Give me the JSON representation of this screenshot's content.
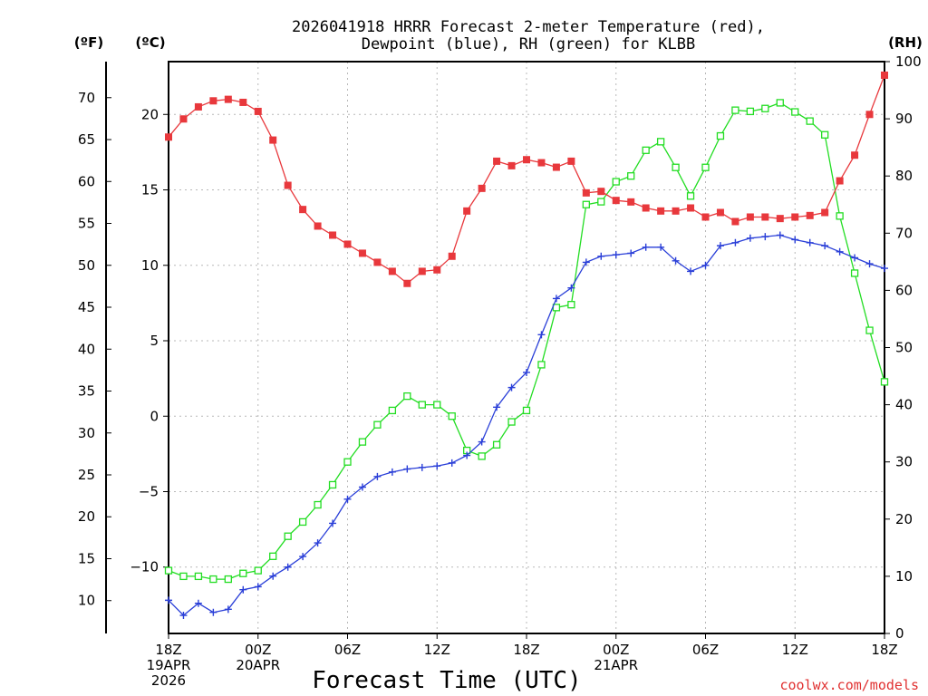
{
  "chart_data": {
    "type": "line",
    "title_lines": [
      "2026041918 HRRR Forecast 2-meter Temperature (red),",
      "Dewpoint (blue), RH (green) for KLBB"
    ],
    "xlabel": "Forecast Time (UTC)",
    "credit": "coolwx.com/models",
    "units": {
      "f": "(ºF)",
      "c": "(ºC)",
      "rh": "(RH)"
    },
    "x_range_hours": [
      0,
      48
    ],
    "celsius_range": [
      -14.4,
      23.5
    ],
    "rh_range": [
      0,
      100
    ],
    "x_ticks": [
      {
        "hour": 0,
        "lines": [
          "18Z",
          "19APR",
          "2026"
        ]
      },
      {
        "hour": 6,
        "lines": [
          "00Z",
          "20APR"
        ]
      },
      {
        "hour": 12,
        "lines": [
          "06Z"
        ]
      },
      {
        "hour": 18,
        "lines": [
          "12Z"
        ]
      },
      {
        "hour": 24,
        "lines": [
          "18Z"
        ]
      },
      {
        "hour": 30,
        "lines": [
          "00Z",
          "21APR"
        ]
      },
      {
        "hour": 36,
        "lines": [
          "06Z"
        ]
      },
      {
        "hour": 42,
        "lines": [
          "12Z"
        ]
      },
      {
        "hour": 48,
        "lines": [
          "18Z"
        ]
      }
    ],
    "celsius_ticks": [
      -10,
      -5,
      0,
      5,
      10,
      15,
      20
    ],
    "fahrenheit_ticks": [
      10,
      15,
      20,
      25,
      30,
      35,
      40,
      45,
      50,
      55,
      60,
      65,
      70
    ],
    "rh_ticks": [
      0,
      10,
      20,
      30,
      40,
      50,
      60,
      70,
      80,
      90,
      100
    ],
    "gridlines": true,
    "series": [
      {
        "name": "2-meter Temperature",
        "unit": "C",
        "color": "#e8383c",
        "marker": "filled-square",
        "values": [
          18.5,
          19.7,
          20.5,
          20.9,
          21.0,
          20.8,
          20.2,
          18.3,
          15.3,
          13.7,
          12.6,
          12.0,
          11.4,
          10.8,
          10.2,
          9.6,
          8.8,
          9.6,
          9.7,
          10.6,
          13.6,
          15.1,
          16.9,
          16.6,
          17.0,
          16.8,
          16.5,
          16.9,
          14.8,
          14.9,
          14.3,
          14.2,
          13.8,
          13.6,
          13.6,
          13.8,
          13.2,
          13.5,
          12.9,
          13.2,
          13.2,
          13.1,
          13.2,
          13.3,
          13.5,
          15.6,
          17.3,
          20.0,
          22.6
        ]
      },
      {
        "name": "Dewpoint",
        "unit": "C",
        "color": "#2a3fd8",
        "marker": "plus",
        "values": [
          -12.2,
          -13.2,
          -12.4,
          -13.0,
          -12.8,
          -11.5,
          -11.3,
          -10.6,
          -10.0,
          -9.3,
          -8.4,
          -7.1,
          -5.5,
          -4.7,
          -4.0,
          -3.7,
          -3.5,
          -3.4,
          -3.3,
          -3.1,
          -2.6,
          -1.7,
          0.6,
          1.9,
          2.9,
          5.4,
          7.8,
          8.5,
          10.2,
          10.6,
          10.7,
          10.8,
          11.2,
          11.2,
          10.3,
          9.6,
          10.0,
          11.3,
          11.5,
          11.8,
          11.9,
          12.0,
          11.7,
          11.5,
          11.3,
          10.9,
          10.5,
          10.1,
          9.8
        ]
      },
      {
        "name": "RH",
        "unit": "%",
        "color": "#22dd22",
        "marker": "open-square",
        "values": [
          11,
          10,
          10,
          9.5,
          9.5,
          10.5,
          11,
          13.5,
          17,
          19.5,
          22.5,
          26,
          30,
          33.5,
          36.5,
          39,
          41.5,
          40,
          40,
          38,
          32,
          31,
          33,
          37,
          39,
          47,
          57,
          57.5,
          75,
          75.5,
          79,
          80,
          84.5,
          86,
          81.5,
          76.5,
          81.5,
          87,
          91.5,
          91.3,
          91.8,
          92.8,
          91.2,
          89.6,
          87.2,
          73,
          63,
          53,
          44
        ]
      }
    ]
  }
}
